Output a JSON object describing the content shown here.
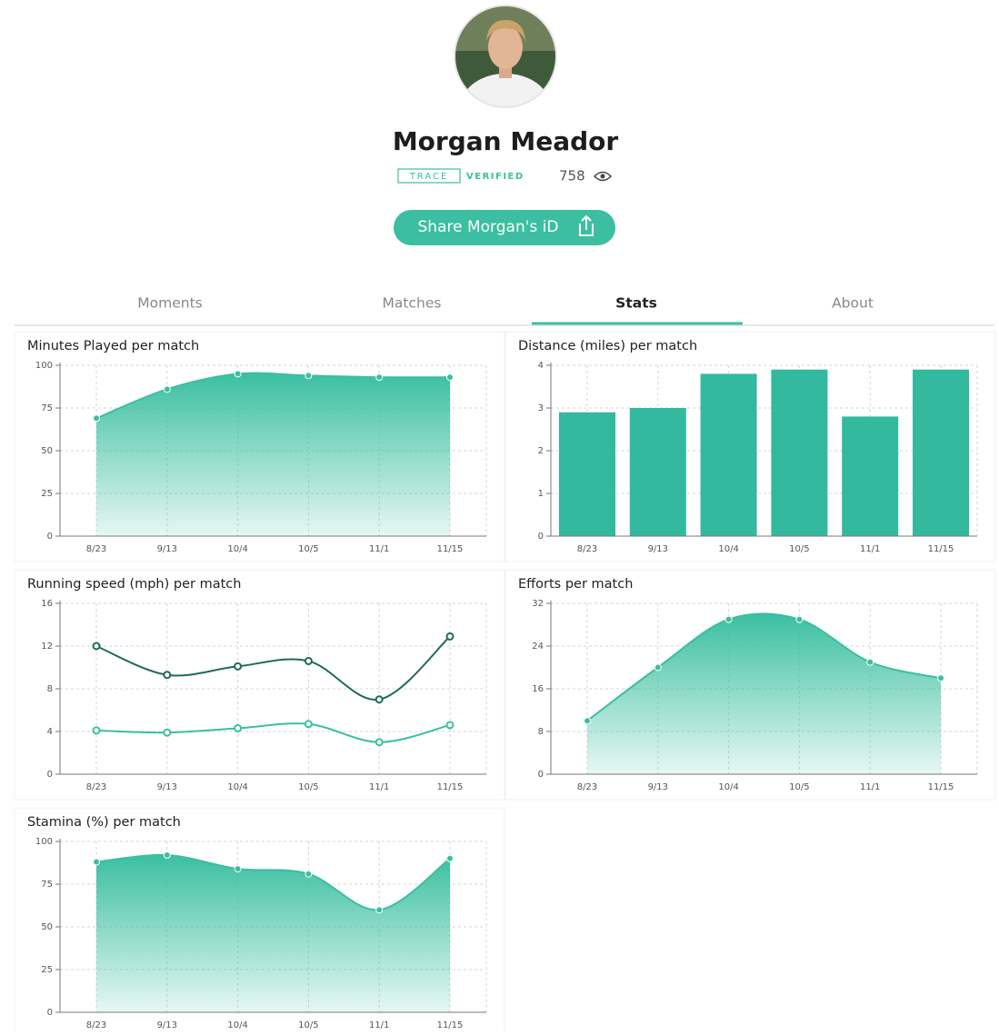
{
  "profile": {
    "name": "Morgan Meador",
    "badge_brand": "TRACE",
    "badge_status": "VERIFIED",
    "views": 758,
    "share_button": "Share Morgan's iD"
  },
  "tabs": [
    "Moments",
    "Matches",
    "Stats",
    "About"
  ],
  "chart_data": [
    {
      "type": "area",
      "title": "Minutes Played per match",
      "categories": [
        "8/23",
        "9/13",
        "10/4",
        "10/5",
        "11/1",
        "11/15"
      ],
      "series": [
        {
          "color": "#3bbfa0",
          "values": [
            69,
            86,
            95,
            94,
            93,
            93
          ]
        }
      ],
      "ylim": [
        0,
        100
      ],
      "yticks": [
        0,
        25,
        50,
        75,
        100
      ],
      "grid": true
    },
    {
      "type": "bar",
      "title": "Distance (miles) per match",
      "categories": [
        "8/23",
        "9/13",
        "10/4",
        "10/5",
        "11/1",
        "11/15"
      ],
      "series": [
        {
          "color": "#33b99d",
          "values": [
            2.9,
            3.0,
            3.8,
            3.9,
            2.8,
            3.9
          ]
        }
      ],
      "ylim": [
        0,
        4
      ],
      "yticks": [
        0,
        1,
        2,
        3,
        4
      ],
      "grid": true
    },
    {
      "type": "line",
      "title": "Running speed (mph) per match",
      "categories": [
        "8/23",
        "9/13",
        "10/4",
        "10/5",
        "11/1",
        "11/15"
      ],
      "series": [
        {
          "color": "#1f6b55",
          "values": [
            12,
            9.3,
            10.1,
            10.6,
            7,
            12.9
          ]
        },
        {
          "color": "#3bbfa0",
          "values": [
            4.1,
            3.9,
            4.3,
            4.7,
            3,
            4.6
          ]
        }
      ],
      "ylim": [
        0,
        16
      ],
      "yticks": [
        0,
        4,
        8,
        12,
        16
      ],
      "grid": true
    },
    {
      "type": "area",
      "title": "Efforts per match",
      "categories": [
        "8/23",
        "9/13",
        "10/4",
        "10/5",
        "11/1",
        "11/15"
      ],
      "series": [
        {
          "color": "#3bbfa0",
          "values": [
            10,
            20,
            29,
            29,
            21,
            18
          ]
        }
      ],
      "ylim": [
        0,
        32
      ],
      "yticks": [
        0,
        8,
        16,
        24,
        32
      ],
      "grid": true
    },
    {
      "type": "area",
      "title": "Stamina (%) per match",
      "categories": [
        "8/23",
        "9/13",
        "10/4",
        "10/5",
        "11/1",
        "11/15"
      ],
      "series": [
        {
          "color": "#3bbfa0",
          "values": [
            88,
            92,
            84,
            81,
            60,
            90
          ]
        }
      ],
      "ylim": [
        0,
        100
      ],
      "yticks": [
        0,
        25,
        50,
        75,
        100
      ],
      "grid": true
    }
  ]
}
